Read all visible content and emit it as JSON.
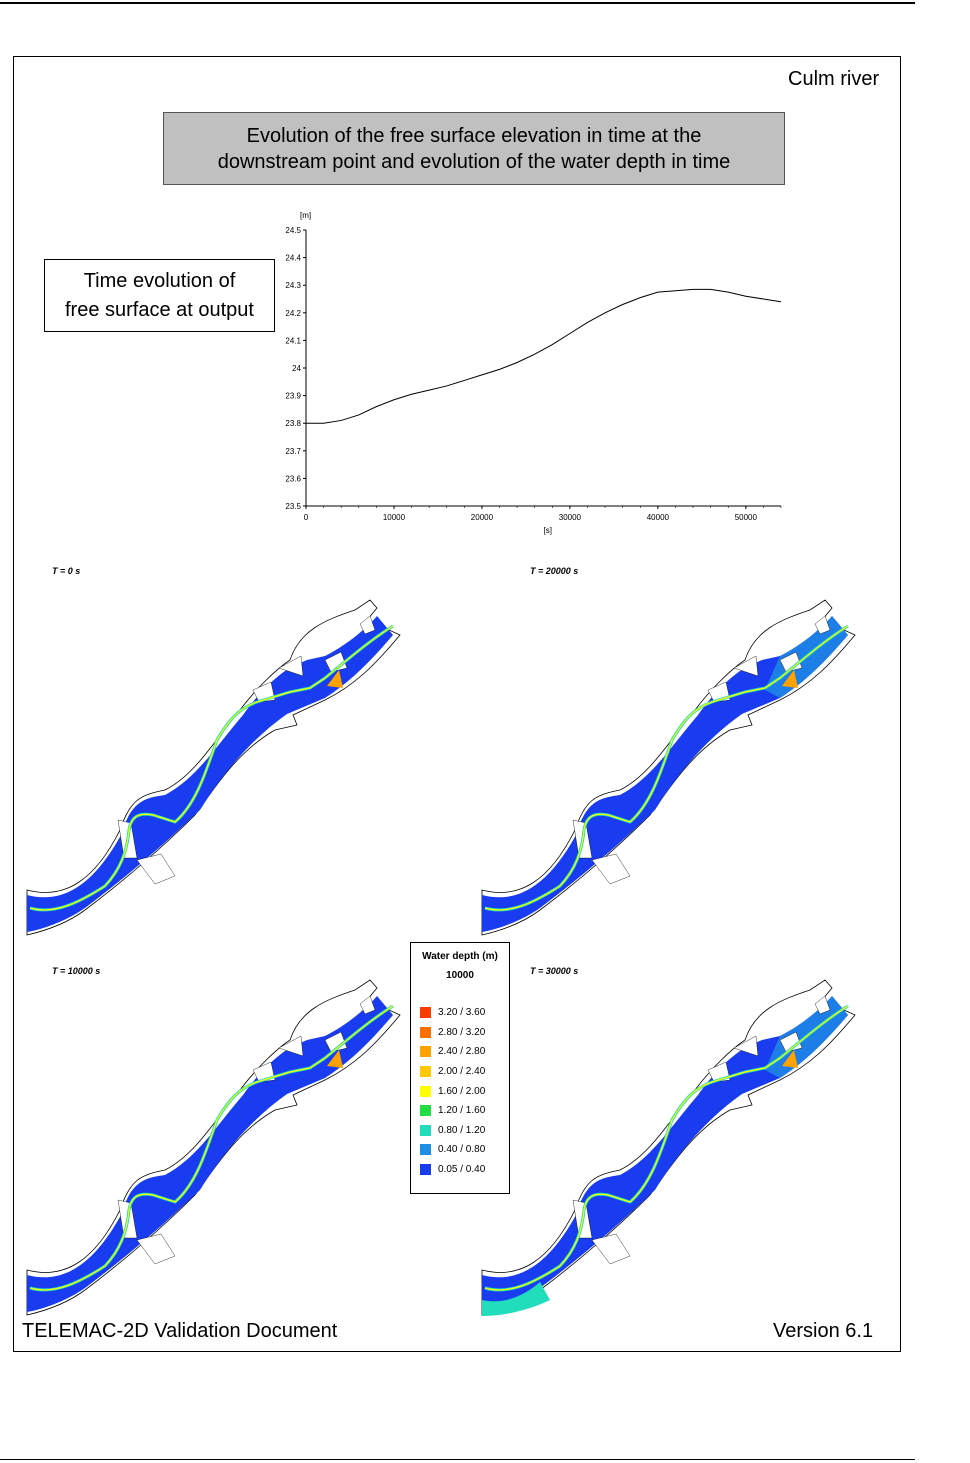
{
  "header": {
    "case_title": "Culm river",
    "title_line1": "Evolution of the free surface elevation in time at the",
    "title_line2": "downstream point and evolution of the water depth in time",
    "label_line1": "Time evolution of",
    "label_line2": "free surface at output"
  },
  "chart_data": {
    "type": "line",
    "title": "",
    "ylabel": "[m]",
    "xlabel": "[s]",
    "xlim": [
      0,
      54000
    ],
    "ylim": [
      23.5,
      24.5
    ],
    "x_ticks": [
      "0",
      "10000",
      "20000",
      "30000",
      "40000",
      "50000"
    ],
    "y_ticks": [
      "23.5",
      "23.6",
      "23.7",
      "23.8",
      "23.9",
      "24",
      "24.1",
      "24.2",
      "24.3",
      "24.4",
      "24.5"
    ],
    "grid": false,
    "series": [
      {
        "x": [
          0,
          2000,
          4000,
          6000,
          8000,
          10000,
          12000,
          14000,
          16000,
          18000,
          20000,
          22000,
          24000,
          26000,
          28000,
          30000,
          32000,
          34000,
          36000,
          38000,
          40000,
          42000,
          44000,
          46000,
          48000,
          50000,
          52000,
          54000
        ],
        "values": [
          23.8,
          23.8,
          23.81,
          23.83,
          23.86,
          23.885,
          23.905,
          23.92,
          23.935,
          23.955,
          23.975,
          23.995,
          24.02,
          24.05,
          24.085,
          24.125,
          24.165,
          24.2,
          24.23,
          24.255,
          24.275,
          24.28,
          24.285,
          24.285,
          24.275,
          24.26,
          24.25,
          24.24
        ]
      }
    ],
    "color": "#000000"
  },
  "maps": [
    {
      "label": "T = 0 s",
      "depth_level": 0
    },
    {
      "label": "T = 20000 s",
      "depth_level": 2
    },
    {
      "label": "T = 10000 s",
      "depth_level": 1
    },
    {
      "label": "T = 30000 s",
      "depth_level": 3
    }
  ],
  "legend": {
    "title": "Water depth (m)",
    "time": "10000",
    "items": [
      {
        "range": "3.20  /   3.60",
        "color": "#ff3a00"
      },
      {
        "range": "2.80  /   3.20",
        "color": "#ff6f00"
      },
      {
        "range": "2.40  /   2.80",
        "color": "#ffa200"
      },
      {
        "range": "2.00  /   2.40",
        "color": "#ffc800"
      },
      {
        "range": "1.60  /   2.00",
        "color": "#ffff00"
      },
      {
        "range": "1.20  /   1.60",
        "color": "#22dd44"
      },
      {
        "range": "0.80  /   1.20",
        "color": "#22ddbb"
      },
      {
        "range": "0.40  /   0.80",
        "color": "#1f8fe6"
      },
      {
        "range": "0.05  /   0.40",
        "color": "#1a3cf0"
      }
    ]
  },
  "footer": {
    "left": "TELEMAC-2D Validation Document",
    "right": "Version 6.1"
  }
}
